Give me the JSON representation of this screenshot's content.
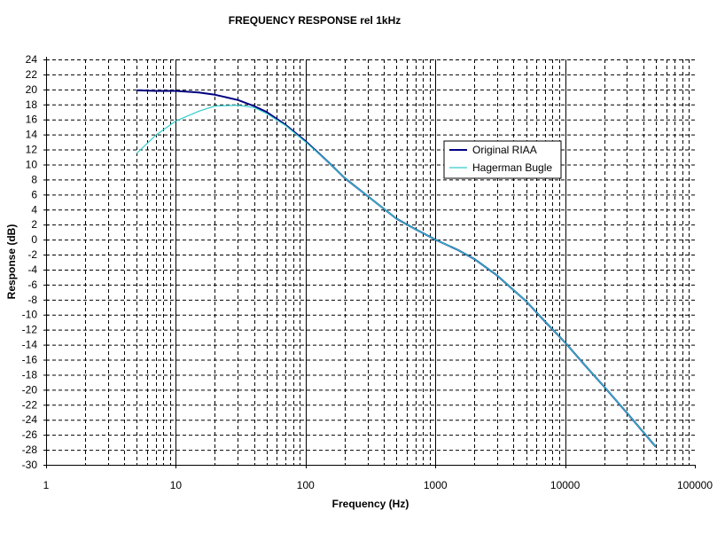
{
  "chart_data": {
    "type": "line",
    "title": "FREQUENCY RESPONSE rel 1kHz",
    "xlabel": "Frequency (Hz)",
    "ylabel": "Response (dB)",
    "x_scale": "log",
    "xlim": [
      1,
      100000
    ],
    "ylim": [
      -30,
      24
    ],
    "x_ticks": [
      "1",
      "10",
      "100",
      "1000",
      "10000",
      "100000"
    ],
    "y_ticks": [
      "24",
      "22",
      "20",
      "18",
      "16",
      "14",
      "12",
      "10",
      "8",
      "6",
      "4",
      "2",
      "0",
      "-2",
      "-4",
      "-6",
      "-8",
      "-10",
      "-12",
      "-14",
      "-16",
      "-18",
      "-20",
      "-22",
      "-24",
      "-26",
      "-28",
      "-30"
    ],
    "grid": true,
    "legend_position": "right",
    "series": [
      {
        "name": "Original RIAA",
        "color": "#000080",
        "x": [
          5,
          7,
          10,
          15,
          20,
          30,
          40,
          50,
          70,
          100,
          150,
          200,
          300,
          500,
          700,
          1000,
          1500,
          2000,
          3000,
          5000,
          7000,
          10000,
          15000,
          20000,
          30000,
          50000
        ],
        "values": [
          19.9,
          19.8,
          19.8,
          19.6,
          19.3,
          18.6,
          17.8,
          17.0,
          15.3,
          13.1,
          10.3,
          8.2,
          5.8,
          2.8,
          1.4,
          0.0,
          -1.4,
          -2.6,
          -4.8,
          -8.2,
          -10.9,
          -13.7,
          -17.2,
          -19.6,
          -23.1,
          -27.6
        ]
      },
      {
        "name": "Hagerman Bugle",
        "color": "#33cccc",
        "x": [
          5,
          7,
          10,
          15,
          20,
          30,
          40,
          50,
          70,
          100,
          150,
          200,
          300,
          500,
          700,
          1000,
          1500,
          2000,
          3000,
          5000,
          7000,
          10000,
          15000,
          20000,
          30000,
          50000
        ],
        "values": [
          11.5,
          13.9,
          15.8,
          17.1,
          17.8,
          17.9,
          17.6,
          16.8,
          15.2,
          13.0,
          10.3,
          8.2,
          5.8,
          2.8,
          1.4,
          0.0,
          -1.4,
          -2.6,
          -4.8,
          -8.2,
          -10.9,
          -13.7,
          -17.2,
          -19.6,
          -23.1,
          -27.6
        ]
      }
    ]
  }
}
